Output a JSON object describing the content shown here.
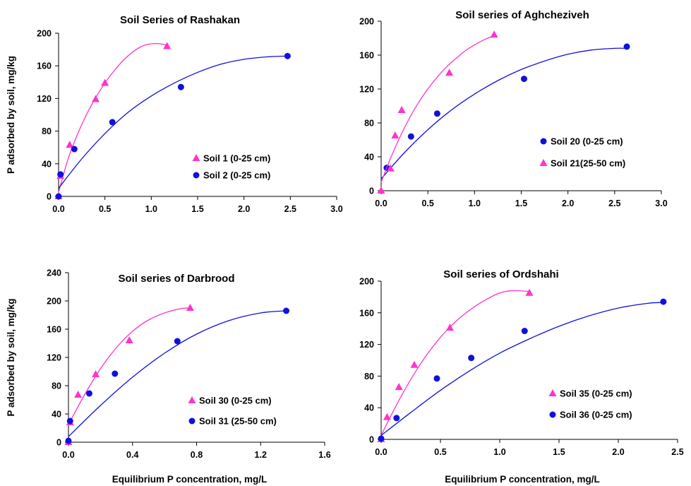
{
  "colors": {
    "magenta": "#ff33cc",
    "blue": "#1010dd"
  },
  "chart_data": [
    {
      "type": "scatter",
      "title": "Soil Series of Rashakan",
      "xlabel": "",
      "ylabel": "P adsorbed by soil, mg/kg",
      "xlim": [
        0,
        3.0
      ],
      "ylim": [
        0,
        200
      ],
      "xticks": [
        "0.0",
        "0.5",
        "1.0",
        "1.5",
        "2.0",
        "2.5",
        "3.0"
      ],
      "yticks": [
        "0",
        "40",
        "80",
        "120",
        "160",
        "200"
      ],
      "legend_position": "lower-right",
      "series": [
        {
          "name": "Soil 1 (0-25 cm)",
          "marker": "triangle",
          "color": "#ff33cc",
          "points": [
            [
              0.0,
              0
            ],
            [
              0.02,
              25
            ],
            [
              0.12,
              63
            ],
            [
              0.4,
              119
            ],
            [
              0.5,
              139
            ],
            [
              1.17,
              184
            ]
          ],
          "fit": [
            [
              0.0,
              5
            ],
            [
              0.1,
              45
            ],
            [
              0.2,
              75
            ],
            [
              0.3,
              100
            ],
            [
              0.4,
              121
            ],
            [
              0.5,
              139
            ],
            [
              0.6,
              154
            ],
            [
              0.7,
              167
            ],
            [
              0.8,
              177
            ],
            [
              0.9,
              184
            ],
            [
              1.0,
              187
            ],
            [
              1.1,
              187
            ],
            [
              1.17,
              185
            ]
          ]
        },
        {
          "name": "Soil 2 (0-25 cm)",
          "marker": "circle",
          "color": "#1010dd",
          "points": [
            [
              0.0,
              0
            ],
            [
              0.02,
              27
            ],
            [
              0.17,
              58
            ],
            [
              0.58,
              91
            ],
            [
              1.32,
              134
            ],
            [
              2.47,
              172
            ]
          ],
          "fit": [
            [
              0.0,
              10
            ],
            [
              0.25,
              46
            ],
            [
              0.5,
              77
            ],
            [
              0.75,
              103
            ],
            [
              1.0,
              123
            ],
            [
              1.25,
              139
            ],
            [
              1.5,
              152
            ],
            [
              1.75,
              162
            ],
            [
              2.0,
              168
            ],
            [
              2.25,
              171
            ],
            [
              2.47,
              172
            ]
          ]
        }
      ]
    },
    {
      "type": "scatter",
      "title": "Soil series of Aghcheziveh",
      "xlabel": "",
      "ylabel": "",
      "xlim": [
        0,
        3.0
      ],
      "ylim": [
        0,
        200
      ],
      "xticks": [
        "0.0",
        "0.5",
        "1.0",
        "1.5",
        "2.0",
        "2.5",
        "3.0"
      ],
      "yticks": [
        "0",
        "40",
        "80",
        "120",
        "160",
        "200"
      ],
      "legend_position": "lower-right",
      "series": [
        {
          "name": "Soil 20 (0-25 cm)",
          "marker": "circle",
          "color": "#1010dd",
          "points": [
            [
              0.06,
              27
            ],
            [
              0.32,
              64
            ],
            [
              0.6,
              91
            ],
            [
              1.53,
              132
            ],
            [
              2.63,
              170
            ]
          ],
          "fit": [
            [
              0.0,
              14
            ],
            [
              0.25,
              45
            ],
            [
              0.5,
              72
            ],
            [
              0.75,
              95
            ],
            [
              1.0,
              114
            ],
            [
              1.25,
              130
            ],
            [
              1.5,
              143
            ],
            [
              1.75,
              153
            ],
            [
              2.0,
              161
            ],
            [
              2.25,
              166
            ],
            [
              2.5,
              168
            ],
            [
              2.63,
              168
            ]
          ]
        },
        {
          "name": "Soil 21(25-50 cm)",
          "marker": "triangle",
          "color": "#ff33cc",
          "points": [
            [
              0.0,
              0
            ],
            [
              0.1,
              26
            ],
            [
              0.15,
              65
            ],
            [
              0.22,
              95
            ],
            [
              0.73,
              139
            ],
            [
              1.21,
              184
            ]
          ],
          "fit": [
            [
              0.0,
              10
            ],
            [
              0.1,
              38
            ],
            [
              0.2,
              63
            ],
            [
              0.3,
              85
            ],
            [
              0.4,
              104
            ],
            [
              0.5,
              120
            ],
            [
              0.6,
              134
            ],
            [
              0.7,
              146
            ],
            [
              0.8,
              156
            ],
            [
              0.9,
              165
            ],
            [
              1.0,
              172
            ],
            [
              1.1,
              178
            ],
            [
              1.21,
              183
            ]
          ]
        }
      ]
    },
    {
      "type": "scatter",
      "title": "Soil series of Darbrood",
      "xlabel": "Equilibrium P concentration, mg/L",
      "ylabel": "P adsorbed by soil, mg/kg",
      "xlim": [
        0,
        1.6
      ],
      "ylim": [
        0,
        240
      ],
      "xticks": [
        "0.0",
        "0.4",
        "0.8",
        "1.2",
        "1.6"
      ],
      "yticks": [
        "0",
        "40",
        "80",
        "120",
        "160",
        "200",
        "240"
      ],
      "legend_position": "lower-right",
      "series": [
        {
          "name": "Soil 30 (0-25 cm)",
          "marker": "triangle",
          "color": "#ff33cc",
          "points": [
            [
              0.0,
              0
            ],
            [
              0.01,
              28
            ],
            [
              0.06,
              67
            ],
            [
              0.17,
              96
            ],
            [
              0.38,
              144
            ],
            [
              0.76,
              190
            ]
          ],
          "fit": [
            [
              0.0,
              25
            ],
            [
              0.1,
              67
            ],
            [
              0.2,
              104
            ],
            [
              0.3,
              134
            ],
            [
              0.4,
              157
            ],
            [
              0.5,
              173
            ],
            [
              0.6,
              183
            ],
            [
              0.7,
              189
            ],
            [
              0.76,
              190
            ]
          ]
        },
        {
          "name": "Soil 31 (25-50 cm)",
          "marker": "circle",
          "color": "#1010dd",
          "points": [
            [
              0.0,
              2
            ],
            [
              0.01,
              30
            ],
            [
              0.13,
              69
            ],
            [
              0.29,
              97
            ],
            [
              0.68,
              143
            ],
            [
              1.36,
              186
            ]
          ],
          "fit": [
            [
              0.0,
              8
            ],
            [
              0.2,
              52
            ],
            [
              0.4,
              92
            ],
            [
              0.6,
              126
            ],
            [
              0.8,
              153
            ],
            [
              1.0,
              172
            ],
            [
              1.2,
              183
            ],
            [
              1.36,
              186
            ]
          ]
        }
      ]
    },
    {
      "type": "scatter",
      "title": "Soil series of Ordshahi",
      "xlabel": "Equilibrium P concentration, mg/L",
      "ylabel": "",
      "xlim": [
        0,
        2.5
      ],
      "ylim": [
        0,
        200
      ],
      "xticks": [
        "0.0",
        "0.5",
        "1.0",
        "1.5",
        "2.0",
        "2.5"
      ],
      "yticks": [
        "0",
        "40",
        "80",
        "120",
        "160",
        "200"
      ],
      "legend_position": "lower-right",
      "series": [
        {
          "name": "Soil 35 (0-25 cm)",
          "marker": "triangle",
          "color": "#ff33cc",
          "points": [
            [
              0.0,
              0
            ],
            [
              0.05,
              28
            ],
            [
              0.15,
              66
            ],
            [
              0.28,
              94
            ],
            [
              0.58,
              141
            ],
            [
              1.25,
              185
            ]
          ],
          "fit": [
            [
              0.0,
              5
            ],
            [
              0.1,
              35
            ],
            [
              0.2,
              63
            ],
            [
              0.3,
              88
            ],
            [
              0.4,
              110
            ],
            [
              0.5,
              129
            ],
            [
              0.6,
              145
            ],
            [
              0.7,
              158
            ],
            [
              0.8,
              169
            ],
            [
              0.9,
              178
            ],
            [
              1.0,
              185
            ],
            [
              1.1,
              188
            ],
            [
              1.25,
              187
            ]
          ]
        },
        {
          "name": "Soil 36 (0-25 cm)",
          "marker": "circle",
          "color": "#1010dd",
          "points": [
            [
              0.0,
              1
            ],
            [
              0.13,
              27
            ],
            [
              0.47,
              77
            ],
            [
              0.76,
              103
            ],
            [
              1.21,
              137
            ],
            [
              2.38,
              174
            ]
          ],
          "fit": [
            [
              0.0,
              5
            ],
            [
              0.25,
              34
            ],
            [
              0.5,
              62
            ],
            [
              0.75,
              87
            ],
            [
              1.0,
              109
            ],
            [
              1.25,
              127
            ],
            [
              1.5,
              143
            ],
            [
              1.75,
              156
            ],
            [
              2.0,
              166
            ],
            [
              2.25,
              172
            ],
            [
              2.38,
              173
            ]
          ]
        }
      ]
    }
  ]
}
